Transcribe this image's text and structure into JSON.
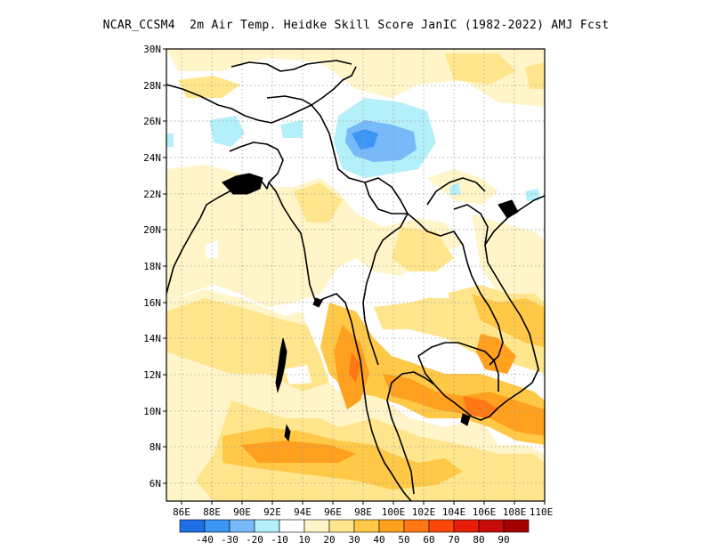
{
  "title": "NCAR_CCSM4  2m Air Temp. Heidke Skill Score JanIC (1982-2022) AMJ Fcst",
  "map": {
    "lat_labels": [
      "30N",
      "28N",
      "26N",
      "24N",
      "22N",
      "20N",
      "18N",
      "16N",
      "14N",
      "12N",
      "10N",
      "8N",
      "6N"
    ],
    "lon_labels": [
      "86E",
      "88E",
      "90E",
      "92E",
      "94E",
      "96E",
      "98E",
      "100E",
      "102E",
      "104E",
      "106E",
      "108E",
      "110E"
    ],
    "lat_range": [
      5,
      30
    ],
    "lon_range": [
      85,
      110
    ],
    "grid": true
  },
  "colorbar": {
    "colors": [
      "#1e6ee6",
      "#3c96f5",
      "#78b9fa",
      "#b4f0fa",
      "#ffffff",
      "#fff5c8",
      "#ffe68c",
      "#ffc846",
      "#ffa01e",
      "#ff7814",
      "#ff460a",
      "#e61e0a",
      "#c80a0a",
      "#a50000"
    ],
    "labels": [
      "-40",
      "-30",
      "-20",
      "-10",
      "10",
      "20",
      "30",
      "40",
      "50",
      "60",
      "70",
      "80",
      "90"
    ]
  }
}
